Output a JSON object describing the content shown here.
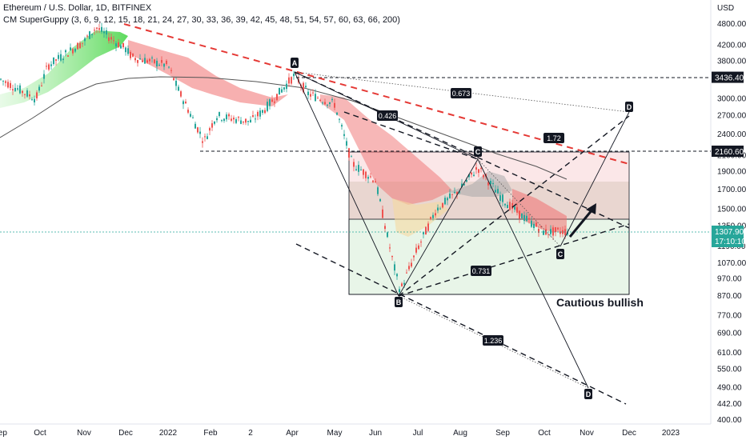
{
  "header": {
    "title": "Ethereum / U.S. Dollar, 1D, BITFINEX",
    "indicator": "CM SuperGuppy (3, 6, 9, 12, 15, 18, 21, 24, 27, 30, 33, 36, 39, 42, 45, 48, 51, 54, 57, 60, 63, 66, 200)"
  },
  "chart_data": {
    "type": "candlestick",
    "title": "Ethereum / U.S. Dollar, 1D, BITFINEX",
    "currency": "USD",
    "yscale": "log",
    "ylim": [
      395,
      5900
    ],
    "y_ticks": [
      4800,
      4200,
      3800,
      3000,
      2700,
      2400,
      2100,
      1900,
      1700,
      1500,
      1350,
      1190,
      1070,
      970,
      870,
      770,
      690,
      610,
      550,
      490,
      442,
      400
    ],
    "x_ticks": [
      "Sep",
      "Oct",
      "Nov",
      "Dec",
      "2022",
      "Feb",
      "2",
      "Apr",
      "May",
      "Jun",
      "Jul",
      "Aug",
      "Sep",
      "Oct",
      "Nov",
      "Dec",
      "2023"
    ],
    "price_path": [
      {
        "x": "Sep",
        "y": 3400
      },
      {
        "x": "Oct",
        "y": 3000
      },
      {
        "x": "Oct",
        "y": 3700
      },
      {
        "x": "Nov",
        "y": 4300
      },
      {
        "x": "Nov",
        "y": 4700
      },
      {
        "x": "Dec",
        "y": 4100
      },
      {
        "x": "Dec",
        "y": 3900
      },
      {
        "x": "2022",
        "y": 3700
      },
      {
        "x": "2022",
        "y": 3200
      },
      {
        "x": "Feb",
        "y": 2300
      },
      {
        "x": "Feb",
        "y": 2700
      },
      {
        "x": "2",
        "y": 2600
      },
      {
        "x": "2",
        "y": 2800
      },
      {
        "x": "Apr",
        "y": 3480
      },
      {
        "x": "Apr",
        "y": 3100
      },
      {
        "x": "May",
        "y": 2900
      },
      {
        "x": "May",
        "y": 2000
      },
      {
        "x": "Jun",
        "y": 1800
      },
      {
        "x": "Jun",
        "y": 1100
      },
      {
        "x": "Jun",
        "y": 900
      },
      {
        "x": "Jul",
        "y": 1150
      },
      {
        "x": "Jul",
        "y": 1500
      },
      {
        "x": "Aug",
        "y": 1700
      },
      {
        "x": "Aug",
        "y": 1950
      },
      {
        "x": "Sep",
        "y": 1600
      },
      {
        "x": "Sep",
        "y": 1450
      },
      {
        "x": "Oct",
        "y": 1300
      },
      {
        "x": "Oct",
        "y": 1307.9
      }
    ],
    "points": [
      {
        "label": "A",
        "price": 3480
      },
      {
        "label": "B",
        "price": 880
      },
      {
        "label": "C",
        "price": 2120
      },
      {
        "label": "C",
        "price": 1200
      },
      {
        "label": "D",
        "price": 2750
      },
      {
        "label": "D",
        "price": 470
      }
    ],
    "fib_ratios": [
      "0.673",
      "0.426",
      "1.72",
      "0.731",
      "1.236"
    ],
    "price_levels": [
      {
        "label": "3436.40",
        "value": 3436.4
      },
      {
        "label": "2160.60",
        "value": 2160.6
      }
    ],
    "current_price": {
      "label": "1307.90",
      "value": 1307.9,
      "countdown": "17:10:10"
    },
    "annotation": "Cautious bullish",
    "colors": {
      "bull": "#26a69a",
      "bear": "#ef5350",
      "guppy_bull": "#66d96a",
      "guppy_bear": "#f07070",
      "trend": "#e53935",
      "current": "#26a69a"
    }
  }
}
